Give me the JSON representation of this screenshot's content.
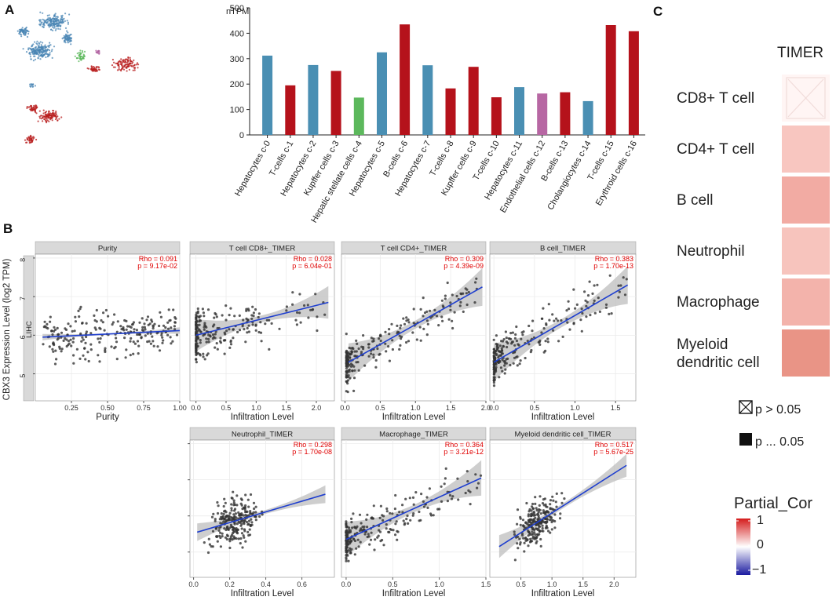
{
  "panel_labels": {
    "a": "A",
    "b": "B",
    "c": "C"
  },
  "chart_data": [
    {
      "type": "scatter",
      "id": "umap",
      "title": "",
      "description_clusters": [
        {
          "color": "#4a86b4"
        },
        {
          "color": "#b81c1c"
        },
        {
          "color": "#5cb85c"
        },
        {
          "color": "#b060a0"
        }
      ]
    },
    {
      "type": "bar",
      "id": "ntpm",
      "ylabel": "nTPM",
      "ylim": [
        0,
        500
      ],
      "yticks": [
        0,
        100,
        200,
        300,
        400,
        500
      ],
      "categories": [
        "Hepatocytes c-0",
        "T-cells c-1",
        "Hepatocytes c-2",
        "Kupffer cells c-3",
        "Hepatic stellate cells c-4",
        "Hepatocytes c-5",
        "B-cells c-6",
        "Hepatocytes c-7",
        "T-cells c-8",
        "Kupffer cells c-9",
        "T-cells c-10",
        "Hepatocytes c-11",
        "Endothelial cells c-12",
        "B-cells c-13",
        "Cholangiocytes c-14",
        "T-cells c-15",
        "Erythroid cells c-16"
      ],
      "values": [
        312,
        195,
        275,
        252,
        147,
        325,
        435,
        274,
        183,
        268,
        148,
        188,
        163,
        168,
        133,
        432,
        408
      ],
      "colors": [
        "#4a8fb3",
        "#b5121b",
        "#4a8fb3",
        "#b5121b",
        "#5cb85c",
        "#4a8fb3",
        "#b5121b",
        "#4a8fb3",
        "#b5121b",
        "#b5121b",
        "#b5121b",
        "#4a8fb3",
        "#b767a3",
        "#b5121b",
        "#4a8fb3",
        "#b5121b",
        "#b5121b"
      ]
    },
    {
      "type": "scatter",
      "id": "timer",
      "ylabel": "CBX3 Expression Level (log2 TPM)",
      "row_label": "LIHC",
      "ylim": [
        4.3,
        8.1
      ],
      "yticks": [
        5,
        6,
        7,
        8
      ],
      "panels": [
        {
          "name": "Purity",
          "stat1": "Rho = 0.091",
          "stat2": "p = 9.17e-02",
          "xlabel": "Purity",
          "xlim": [
            0.0,
            1.0
          ],
          "xticks": [
            0.25,
            0.5,
            0.75,
            1.0
          ],
          "xtick_labels": [
            "0.25",
            "0.50",
            "0.75",
            "1.00"
          ],
          "line": [
            [
              0.05,
              5.95
            ],
            [
              1.0,
              6.12
            ]
          ],
          "ci": 0.12,
          "xdist": "uniform",
          "xmin": 0.05,
          "xmax": 1.0,
          "seed": 3
        },
        {
          "name": "T cell CD8+_TIMER",
          "stat1": "Rho = 0.028",
          "stat2": "p = 6.04e-01",
          "xlabel": "Infiltration Level",
          "xlim": [
            -0.1,
            2.3
          ],
          "xticks": [
            0.0,
            0.5,
            1.0,
            1.5,
            2.0
          ],
          "xtick_labels": [
            "0.0",
            "0.5",
            "1.0",
            "1.5",
            "2.0"
          ],
          "line": [
            [
              0.0,
              6.0
            ],
            [
              2.2,
              6.85
            ]
          ],
          "ci": 0.6,
          "xdist": "skew",
          "xmin": 0.0,
          "xmax": 2.2,
          "seed": 7
        },
        {
          "name": "T cell CD4+_TIMER",
          "stat1": "Rho = 0.309",
          "stat2": "p = 4.39e-09",
          "xlabel": "Infiltration Level",
          "xlim": [
            -0.05,
            2.0
          ],
          "xticks": [
            0.0,
            0.5,
            1.0,
            1.5,
            2.0
          ],
          "xtick_labels": [
            "0.0",
            "0.5",
            "1.0",
            "1.5",
            "2.0"
          ],
          "line": [
            [
              0.05,
              5.3
            ],
            [
              1.95,
              7.25
            ]
          ],
          "ci": 0.7,
          "xdist": "skew",
          "xmin": 0.02,
          "xmax": 1.9,
          "seed": 11
        },
        {
          "name": "B cell_TIMER",
          "stat1": "Rho = 0.383",
          "stat2": "p = 1.70e-13",
          "xlabel": "Infiltration Level",
          "xlim": [
            -0.05,
            1.75
          ],
          "xticks": [
            0.0,
            0.5,
            1.0,
            1.5
          ],
          "xtick_labels": [
            "0.0",
            "0.5",
            "1.0",
            "1.5"
          ],
          "line": [
            [
              0.0,
              5.3
            ],
            [
              1.65,
              7.3
            ]
          ],
          "ci": 0.7,
          "xdist": "skew",
          "xmin": 0.0,
          "xmax": 1.65,
          "seed": 13
        },
        {
          "name": "Neutrophil_TIMER",
          "stat1": "Rho = 0.298",
          "stat2": "p = 1.70e-08",
          "xlabel": "Infiltration Level",
          "xlim": [
            -0.02,
            0.78
          ],
          "xticks": [
            0.0,
            0.2,
            0.4,
            0.6
          ],
          "xtick_labels": [
            "0.0",
            "0.2",
            "0.4",
            "0.6"
          ],
          "line": [
            [
              0.02,
              5.55
            ],
            [
              0.73,
              6.6
            ]
          ],
          "ci": 0.35,
          "xdist": "normal",
          "xmin": 0.02,
          "xmax": 0.73,
          "seed": 17
        },
        {
          "name": "Macrophage_TIMER",
          "stat1": "Rho = 0.364",
          "stat2": "p = 3.21e-12",
          "xlabel": "Infiltration Level",
          "xlim": [
            -0.05,
            1.5
          ],
          "xticks": [
            0.0,
            0.5,
            1.0,
            1.5
          ],
          "xtick_labels": [
            "0.0",
            "0.5",
            "1.0",
            "1.5"
          ],
          "line": [
            [
              0.0,
              5.35
            ],
            [
              1.45,
              7.05
            ]
          ],
          "ci": 0.7,
          "xdist": "skew",
          "xmin": 0.0,
          "xmax": 1.45,
          "seed": 19
        },
        {
          "name": "Myeloid dendritic cell_TIMER",
          "stat1": "Rho = 0.517",
          "stat2": "p = 5.67e-25",
          "xlabel": "Infiltration Level",
          "xlim": [
            0.0,
            2.35
          ],
          "xticks": [
            0.5,
            1.0,
            1.5,
            2.0
          ],
          "xtick_labels": [
            "0.5",
            "1.0",
            "1.5",
            "2.0"
          ],
          "line": [
            [
              0.15,
              5.15
            ],
            [
              2.2,
              7.4
            ]
          ],
          "ci": 0.45,
          "xdist": "normal",
          "xmin": 0.15,
          "xmax": 2.2,
          "seed": 23
        }
      ]
    },
    {
      "type": "heatmap",
      "id": "timer-heat",
      "title": "TIMER",
      "rows": [
        "CD8+ T cell",
        "CD4+ T cell",
        "B cell",
        "Neutrophil",
        "Macrophage",
        "Myeloid\ndendritic cell"
      ],
      "values": [
        0.028,
        0.309,
        0.383,
        0.298,
        0.364,
        0.517
      ],
      "colors": [
        "#fff5f4",
        "#f8c6c0",
        "#f2aba3",
        "#f7c4bd",
        "#f3b3ab",
        "#e99486"
      ],
      "significant": [
        false,
        true,
        true,
        true,
        true,
        true
      ],
      "legend_marks": [
        {
          "label": "p > 0.05"
        },
        {
          "label": "p ... 0.05"
        }
      ],
      "colorbar_title": "Partial_Cor",
      "colorbar_ticks": [
        "1",
        "0",
        "−1"
      ]
    }
  ]
}
